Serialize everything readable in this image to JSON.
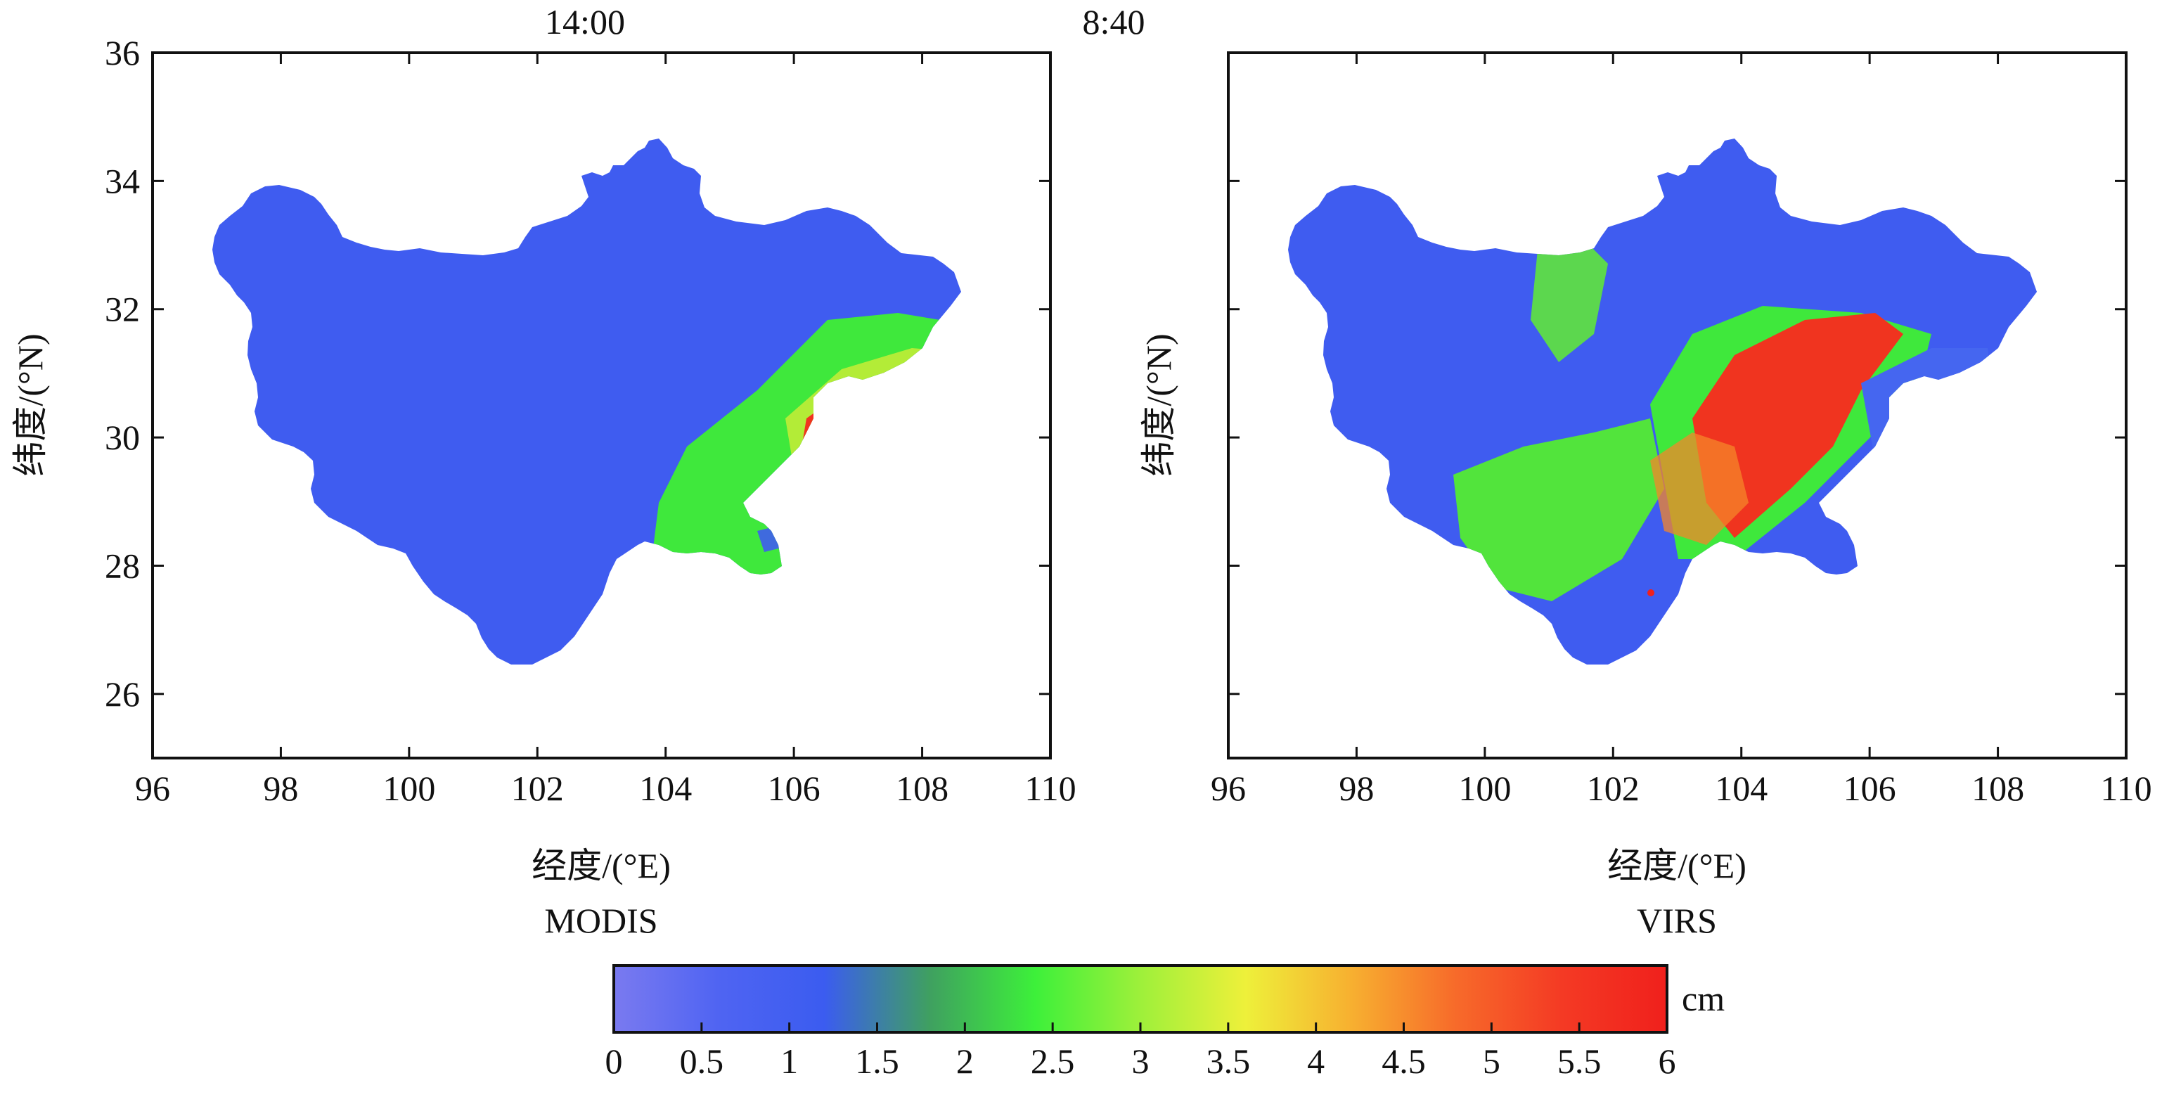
{
  "colors": {
    "scale": [
      "#7a7af0",
      "#4f64f2",
      "#3b5cf0",
      "#3fa060",
      "#3df03a",
      "#9ef03a",
      "#eef03a",
      "#f7b030",
      "#f76a2a",
      "#f43a24",
      "#f0201c"
    ],
    "background": "#ffffff",
    "frame": "#111111"
  },
  "x_axis": {
    "label": "经度/(°E)",
    "range": [
      96,
      110
    ],
    "ticks": [
      "96",
      "98",
      "100",
      "102",
      "104",
      "106",
      "108",
      "110"
    ]
  },
  "y_axis": {
    "label": "纬度/(°N)",
    "range": [
      25,
      36
    ],
    "ticks": [
      "26",
      "28",
      "30",
      "32",
      "34",
      "36"
    ]
  },
  "panels": [
    {
      "time": "14:00",
      "sensor": "MODIS"
    },
    {
      "time": "8:40",
      "sensor": "VIRS"
    }
  ],
  "colorbar": {
    "unit": "cm",
    "range": [
      0,
      6
    ],
    "ticks": [
      "0",
      "0.5",
      "1",
      "1.5",
      "2",
      "2.5",
      "3",
      "3.5",
      "4",
      "4.5",
      "5",
      "5.5",
      "6"
    ]
  }
}
